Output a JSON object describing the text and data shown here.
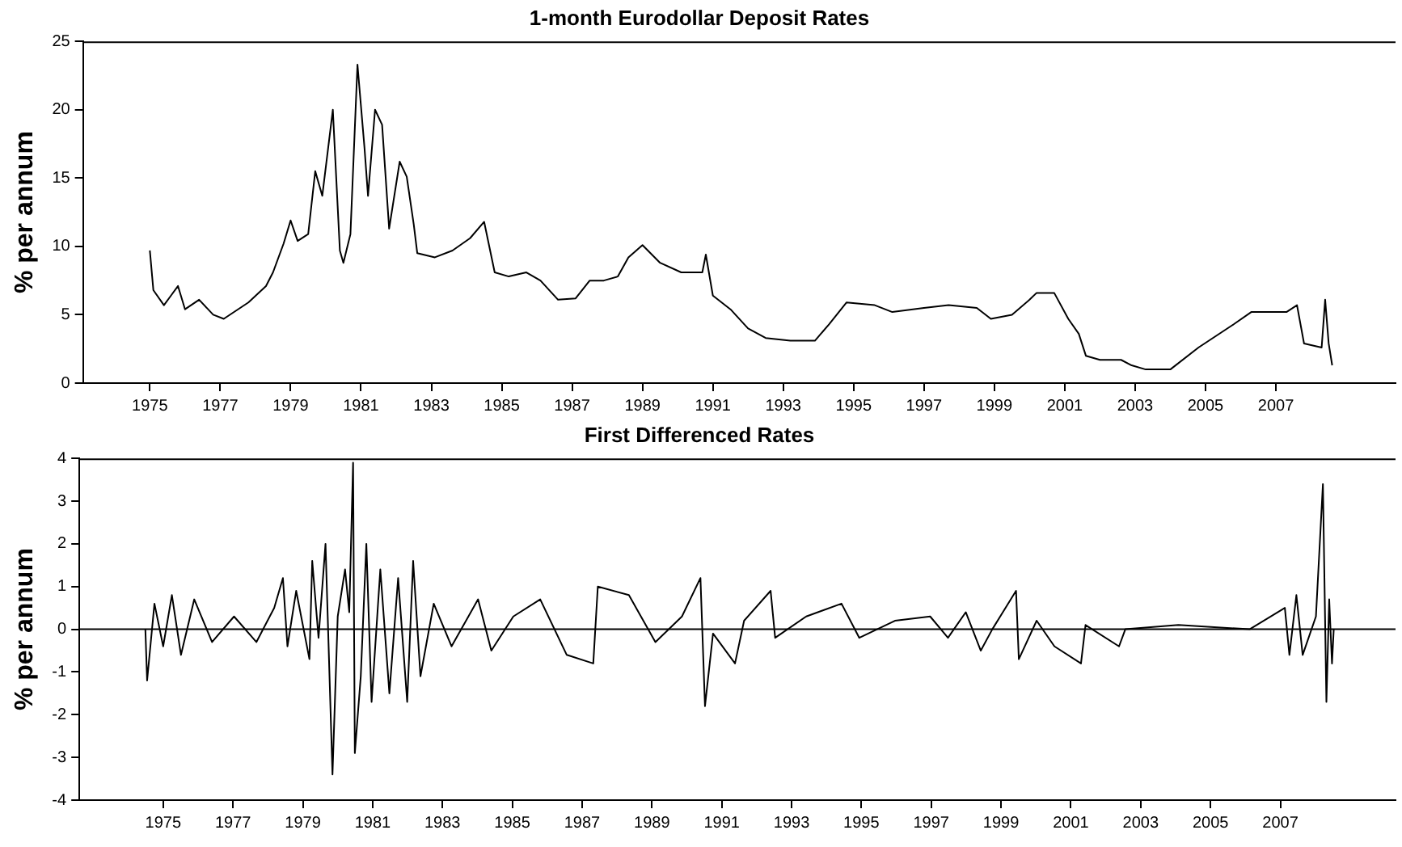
{
  "chart_data": [
    {
      "type": "line",
      "title": "1-month Eurodollar Deposit Rates",
      "ylabel": "% per annum",
      "xlim": [
        1973.1,
        2010.4
      ],
      "xticks": [
        1975,
        1977,
        1979,
        1981,
        1983,
        1985,
        1987,
        1989,
        1991,
        1993,
        1995,
        1997,
        1999,
        2001,
        2003,
        2005,
        2007
      ],
      "ylim": [
        0,
        25
      ],
      "yticks": [
        0,
        5,
        10,
        15,
        20,
        25
      ],
      "grid": false,
      "legend": false,
      "marker": "none",
      "line_style": "solid",
      "series": [
        {
          "color": "#000000",
          "x": [
            1975.0,
            1975.1,
            1975.4,
            1975.6,
            1975.8,
            1976.0,
            1976.4,
            1976.8,
            1977.1,
            1977.8,
            1978.3,
            1978.5,
            1978.8,
            1979.0,
            1979.2,
            1979.5,
            1979.7,
            1979.9,
            1980.2,
            1980.4,
            1980.5,
            1980.7,
            1980.9,
            1981.1,
            1981.2,
            1981.4,
            1981.6,
            1981.8,
            1982.1,
            1982.3,
            1982.5,
            1982.6,
            1983.1,
            1983.6,
            1984.1,
            1984.5,
            1984.8,
            1985.2,
            1985.7,
            1986.1,
            1986.6,
            1987.1,
            1987.5,
            1987.9,
            1988.3,
            1988.6,
            1989.0,
            1989.5,
            1990.1,
            1990.7,
            1990.8,
            1991.0,
            1991.5,
            1992.0,
            1992.5,
            1993.2,
            1993.9,
            1994.3,
            1994.8,
            1995.6,
            1996.1,
            1997.0,
            1997.7,
            1998.5,
            1998.9,
            1999.5,
            2000.0,
            2000.2,
            2000.7,
            2001.1,
            2001.4,
            2001.6,
            2002.0,
            2002.6,
            2002.9,
            2003.3,
            2004.0,
            2004.8,
            2005.8,
            2006.3,
            2007.3,
            2007.6,
            2007.8,
            2008.3,
            2008.4,
            2008.5,
            2008.6
          ],
          "values": [
            9.7,
            6.8,
            5.7,
            6.4,
            7.1,
            5.4,
            6.1,
            5.0,
            4.7,
            5.9,
            7.1,
            8.1,
            10.2,
            11.9,
            10.4,
            10.9,
            15.5,
            13.7,
            20.0,
            9.7,
            8.8,
            10.9,
            23.3,
            17.2,
            13.7,
            20.0,
            18.9,
            11.3,
            16.2,
            15.1,
            11.6,
            9.5,
            9.2,
            9.7,
            10.6,
            11.8,
            8.1,
            7.8,
            8.1,
            7.5,
            6.1,
            6.2,
            7.5,
            7.5,
            7.8,
            9.2,
            10.1,
            8.8,
            8.1,
            8.1,
            9.4,
            6.4,
            5.4,
            4.0,
            3.3,
            3.1,
            3.1,
            4.3,
            5.9,
            5.7,
            5.2,
            5.5,
            5.7,
            5.5,
            4.7,
            5.0,
            6.1,
            6.6,
            6.6,
            4.7,
            3.6,
            2.0,
            1.7,
            1.7,
            1.3,
            1.0,
            1.0,
            2.6,
            4.3,
            5.2,
            5.2,
            5.7,
            2.9,
            2.6,
            6.1,
            2.9,
            1.3
          ]
        }
      ]
    },
    {
      "type": "line",
      "title": "First Differenced Rates",
      "ylabel": "% per annum",
      "xlim": [
        1972.6,
        2010.3
      ],
      "xticks": [
        1975,
        1977,
        1979,
        1981,
        1983,
        1985,
        1987,
        1989,
        1991,
        1993,
        1995,
        1997,
        1999,
        2001,
        2003,
        2005,
        2007
      ],
      "ylim": [
        -4,
        4
      ],
      "yticks": [
        -4,
        -3,
        -2,
        -1,
        0,
        1,
        2,
        3,
        4
      ],
      "grid": false,
      "legend": false,
      "marker": "none",
      "line_style": "solid",
      "ref_lines": [
        {
          "axis": "y",
          "value": 0,
          "color": "#000000"
        }
      ],
      "series": [
        {
          "color": "#000000",
          "x": [
            1974.49,
            1974.54,
            1974.75,
            1975.0,
            1975.25,
            1975.51,
            1975.89,
            1976.4,
            1977.03,
            1977.67,
            1978.18,
            1978.43,
            1978.56,
            1978.81,
            1979.19,
            1979.27,
            1979.45,
            1979.65,
            1979.85,
            1980.0,
            1980.21,
            1980.33,
            1980.44,
            1980.49,
            1980.66,
            1980.82,
            1980.97,
            1981.22,
            1981.48,
            1981.73,
            1981.99,
            1982.16,
            1982.37,
            1982.75,
            1983.26,
            1984.02,
            1984.4,
            1985.03,
            1985.8,
            1986.56,
            1987.32,
            1987.45,
            1988.34,
            1989.1,
            1989.86,
            1990.39,
            1990.52,
            1990.75,
            1991.38,
            1991.64,
            1992.4,
            1992.53,
            1993.42,
            1994.43,
            1994.94,
            1995.96,
            1996.97,
            1997.48,
            1997.99,
            1998.42,
            1998.75,
            1999.43,
            1999.51,
            2000.02,
            2000.53,
            2001.29,
            2001.42,
            2002.38,
            2002.56,
            2004.08,
            2006.12,
            2007.13,
            2007.26,
            2007.46,
            2007.64,
            2008.02,
            2008.22,
            2008.32,
            2008.4,
            2008.48,
            2008.53
          ],
          "values": [
            0,
            -1.2,
            0.6,
            -0.4,
            0.8,
            -0.6,
            0.7,
            -0.3,
            0.3,
            -0.3,
            0.5,
            1.2,
            -0.4,
            0.9,
            -0.7,
            1.6,
            -0.2,
            2.0,
            -3.4,
            0.3,
            1.4,
            0.4,
            3.9,
            -2.9,
            -1.1,
            2.0,
            -1.7,
            1.4,
            -1.5,
            1.2,
            -1.7,
            1.6,
            -1.1,
            0.6,
            -0.4,
            0.7,
            -0.5,
            0.3,
            0.7,
            -0.6,
            -0.8,
            1.0,
            0.8,
            -0.3,
            0.3,
            1.2,
            -1.8,
            -0.1,
            -0.8,
            0.2,
            0.9,
            -0.2,
            0.3,
            0.6,
            -0.2,
            0.2,
            0.3,
            -0.2,
            0.4,
            -0.5,
            0.0,
            0.9,
            -0.7,
            0.2,
            -0.4,
            -0.8,
            0.1,
            -0.4,
            0,
            0.1,
            0.0,
            0.5,
            -0.6,
            0.8,
            -0.6,
            0.3,
            3.4,
            -1.7,
            0.7,
            -0.8,
            0
          ]
        }
      ]
    }
  ]
}
